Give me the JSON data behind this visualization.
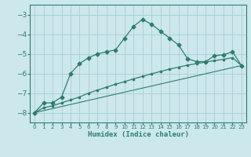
{
  "background_color": "#cce8ec",
  "grid_color": "#aacdd4",
  "line_color": "#2e7d6e",
  "xlabel": "Humidex (Indice chaleur)",
  "xlim": [
    -0.5,
    23.5
  ],
  "ylim": [
    -8.5,
    -2.5
  ],
  "yticks": [
    -8,
    -7,
    -6,
    -5,
    -4,
    -3
  ],
  "xticks": [
    0,
    1,
    2,
    3,
    4,
    5,
    6,
    7,
    8,
    9,
    10,
    11,
    12,
    13,
    14,
    15,
    16,
    17,
    18,
    19,
    20,
    21,
    22,
    23
  ],
  "line1_x": [
    0,
    1,
    2,
    3,
    4,
    5,
    6,
    7,
    8,
    9,
    10,
    11,
    12,
    13,
    14,
    15,
    16,
    17,
    18,
    19,
    20,
    21,
    22,
    23
  ],
  "line1_y": [
    -8.0,
    -7.5,
    -7.5,
    -7.2,
    -6.0,
    -5.5,
    -5.2,
    -5.0,
    -4.9,
    -4.8,
    -4.2,
    -3.6,
    -3.25,
    -3.5,
    -3.85,
    -4.2,
    -4.55,
    -5.25,
    -5.4,
    -5.4,
    -5.1,
    -5.05,
    -4.9,
    -5.6
  ],
  "line2_x": [
    0,
    1,
    2,
    3,
    4,
    5,
    6,
    7,
    8,
    9,
    10,
    11,
    12,
    13,
    14,
    15,
    16,
    17,
    18,
    19,
    20,
    21,
    22,
    23
  ],
  "line2_y": [
    -8.0,
    -7.75,
    -7.65,
    -7.5,
    -7.35,
    -7.2,
    -7.0,
    -6.85,
    -6.7,
    -6.55,
    -6.42,
    -6.28,
    -6.15,
    -6.02,
    -5.9,
    -5.78,
    -5.68,
    -5.58,
    -5.5,
    -5.42,
    -5.35,
    -5.28,
    -5.2,
    -5.6
  ],
  "line3_x": [
    0,
    23
  ],
  "line3_y": [
    -8.0,
    -5.6
  ]
}
